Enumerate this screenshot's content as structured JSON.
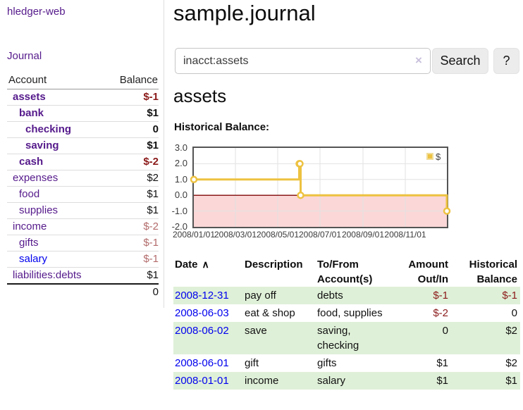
{
  "app": {
    "title": "hledger-web",
    "nav_journal": "Journal"
  },
  "sidebar": {
    "accounts": {
      "col_account": "Account",
      "col_balance": "Balance",
      "rows": [
        {
          "name": "assets",
          "balance": "$-1",
          "indent": 1,
          "bold": true,
          "negative": true,
          "unvisited": false
        },
        {
          "name": "bank",
          "balance": "$1",
          "indent": 2,
          "bold": true,
          "negative": false,
          "unvisited": false
        },
        {
          "name": "checking",
          "balance": "0",
          "indent": 3,
          "bold": true,
          "negative": false,
          "unvisited": false
        },
        {
          "name": "saving",
          "balance": "$1",
          "indent": 3,
          "bold": true,
          "negative": false,
          "unvisited": false
        },
        {
          "name": "cash",
          "balance": "$-2",
          "indent": 2,
          "bold": true,
          "negative": true,
          "unvisited": false
        },
        {
          "name": "expenses",
          "balance": "$2",
          "indent": 1,
          "bold": false,
          "negative": false,
          "unvisited": false
        },
        {
          "name": "food",
          "balance": "$1",
          "indent": 2,
          "bold": false,
          "negative": false,
          "unvisited": false
        },
        {
          "name": "supplies",
          "balance": "$1",
          "indent": 2,
          "bold": false,
          "negative": false,
          "unvisited": false
        },
        {
          "name": "income",
          "balance": "$-2",
          "indent": 1,
          "bold": false,
          "negative": true,
          "unvisited": false
        },
        {
          "name": "gifts",
          "balance": "$-1",
          "indent": 2,
          "bold": false,
          "negative": true,
          "unvisited": false
        },
        {
          "name": "salary",
          "balance": "$-1",
          "indent": 2,
          "bold": false,
          "negative": true,
          "unvisited": true
        },
        {
          "name": "liabilities:debts",
          "balance": "$1",
          "indent": 1,
          "bold": false,
          "negative": false,
          "unvisited": false
        }
      ],
      "total": "0"
    }
  },
  "main": {
    "title": "sample.journal",
    "search": {
      "value": "inacct:assets",
      "clear_icon": "×",
      "search_button": "Search",
      "help_button": "?"
    },
    "account_heading": "assets",
    "chart_label": "Historical Balance:",
    "register": {
      "headers": {
        "date": "Date",
        "sort_icon": "∧",
        "description": "Description",
        "accounts": "To/From Account(s)",
        "amount": "Amount Out/In",
        "balance": "Historical Balance"
      },
      "rows": [
        {
          "date": "2008-12-31",
          "description": "pay off",
          "accounts": "debts",
          "amount": "$-1",
          "balance": "$-1",
          "amount_negative": true,
          "balance_negative": true,
          "stripe": true
        },
        {
          "date": "2008-06-03",
          "description": "eat & shop",
          "accounts": "food, supplies",
          "amount": "$-2",
          "balance": "0",
          "amount_negative": true,
          "balance_negative": false,
          "stripe": false
        },
        {
          "date": "2008-06-02",
          "description": "save",
          "accounts": "saving, checking",
          "amount": "0",
          "balance": "$2",
          "amount_negative": false,
          "balance_negative": false,
          "stripe": true
        },
        {
          "date": "2008-06-01",
          "description": "gift",
          "accounts": "gifts",
          "amount": "$1",
          "balance": "$2",
          "amount_negative": false,
          "balance_negative": false,
          "stripe": false
        },
        {
          "date": "2008-01-01",
          "description": "income",
          "accounts": "salary",
          "amount": "$1",
          "balance": "$1",
          "amount_negative": false,
          "balance_negative": false,
          "stripe": true
        }
      ]
    }
  },
  "chart_data": {
    "type": "line",
    "step": true,
    "title": "Historical Balance:",
    "legend_label": "$",
    "legend_position": "top-right",
    "grid": true,
    "series": [
      {
        "name": "$",
        "color": "#EDC240",
        "points": [
          [
            "2008-01-01",
            1.0
          ],
          [
            "2008-06-01",
            2.0
          ],
          [
            "2008-06-02",
            2.0
          ],
          [
            "2008-06-03",
            0.0
          ],
          [
            "2008-12-31",
            -1.0
          ]
        ]
      }
    ],
    "xrange": [
      "2008/01/01",
      "2008/12/31"
    ],
    "xticks": [
      "2008/01/01",
      "2008/03/01",
      "2008/05/01",
      "2008/07/01",
      "2008/09/01",
      "2008/11/01"
    ],
    "ylim": [
      -2.0,
      3.0
    ],
    "yticks": [
      3.0,
      2.0,
      1.0,
      0.0,
      -1.0,
      -2.0
    ],
    "negative_region_color": "#FBD7D7",
    "zero_line_color": "#8B1A1A",
    "gridline_color": "#E2E2E2"
  },
  "colors": {
    "link_visited_purple": "#551A8B",
    "link_blue": "#0000EE",
    "negative_strong": "#8B1A1A",
    "negative_dim": "#B36B6B",
    "row_stripe_green": "#DFF0D8",
    "series_gold": "#EDC240",
    "chart_border_gray": "#545454"
  }
}
